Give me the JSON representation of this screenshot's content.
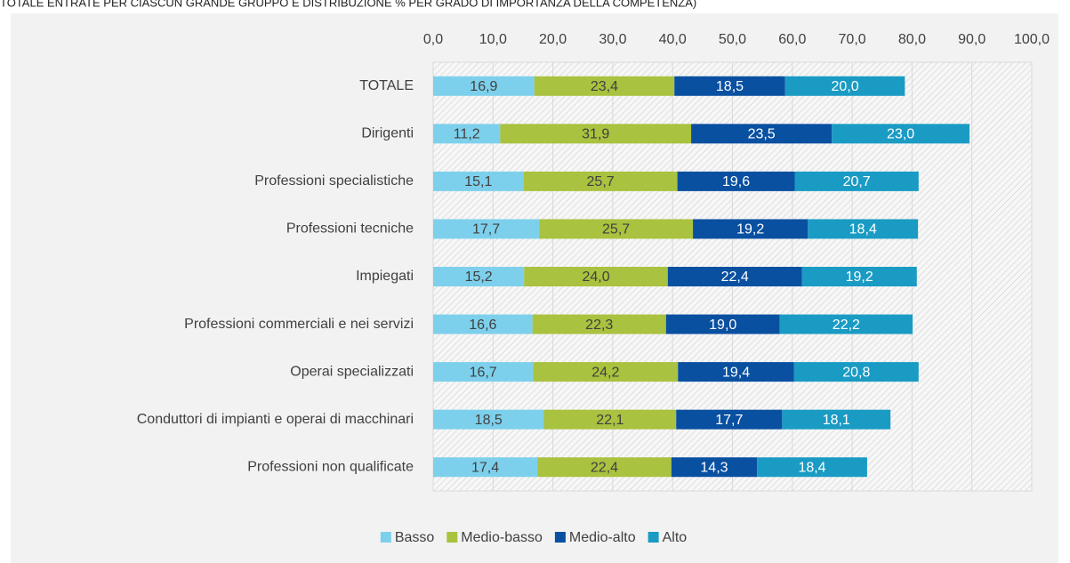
{
  "chart_data": {
    "type": "stacked-barh",
    "title": "TOTALE ENTRATE PER CIASCUN GRANDE GRUPPO E DISTRIBUZIONE % PER GRADO DI IMPORTANZA DELLA COMPETENZA)",
    "categories": [
      "TOTALE",
      "Dirigenti",
      "Professioni specialistiche",
      "Professioni tecniche",
      "Impiegati",
      "Professioni commerciali e nei servizi",
      "Operai specializzati",
      "Conduttori di impianti e operai di macchinari",
      "Professioni non qualificate"
    ],
    "series": [
      {
        "name": "Basso",
        "color": "#7dd0ec",
        "values": [
          16.9,
          11.2,
          15.1,
          17.7,
          15.2,
          16.6,
          16.7,
          18.5,
          17.4
        ],
        "value_labels": [
          "16,9",
          "11,2",
          "15,1",
          "17,7",
          "15,2",
          "16,6",
          "16,7",
          "18,5",
          "17,4"
        ]
      },
      {
        "name": "Medio-basso",
        "color": "#a9c23f",
        "values": [
          23.4,
          31.9,
          25.7,
          25.7,
          24.0,
          22.3,
          24.2,
          22.1,
          22.4
        ],
        "value_labels": [
          "23,4",
          "31,9",
          "25,7",
          "25,7",
          "24,0",
          "22,3",
          "24,2",
          "22,1",
          "22,4"
        ]
      },
      {
        "name": "Medio-alto",
        "color": "#0a50a1",
        "values": [
          18.5,
          23.5,
          19.6,
          19.2,
          22.4,
          19.0,
          19.4,
          17.7,
          14.3
        ],
        "value_labels": [
          "18,5",
          "23,5",
          "19,6",
          "19,2",
          "22,4",
          "19,0",
          "19,4",
          "17,7",
          "14,3"
        ]
      },
      {
        "name": "Alto",
        "color": "#1a9bc4",
        "values": [
          20.0,
          23.0,
          20.7,
          18.4,
          19.2,
          22.2,
          20.8,
          18.1,
          18.4
        ],
        "value_labels": [
          "20,0",
          "23,0",
          "20,7",
          "18,4",
          "19,2",
          "22,2",
          "20,8",
          "18,1",
          "18,4"
        ]
      }
    ],
    "xlim": [
      0,
      100
    ],
    "xticks": [
      {
        "value": 0,
        "label": "0,0"
      },
      {
        "value": 10,
        "label": "10,0"
      },
      {
        "value": 20,
        "label": "20,0"
      },
      {
        "value": 30,
        "label": "30,0"
      },
      {
        "value": 40,
        "label": "40,0"
      },
      {
        "value": 50,
        "label": "50,0"
      },
      {
        "value": 60,
        "label": "60,0"
      },
      {
        "value": 70,
        "label": "70,0"
      },
      {
        "value": 80,
        "label": "80,0"
      },
      {
        "value": 90,
        "label": "90,0"
      },
      {
        "value": 100,
        "label": "100,0"
      }
    ],
    "grid": true,
    "legend": "bottom"
  }
}
